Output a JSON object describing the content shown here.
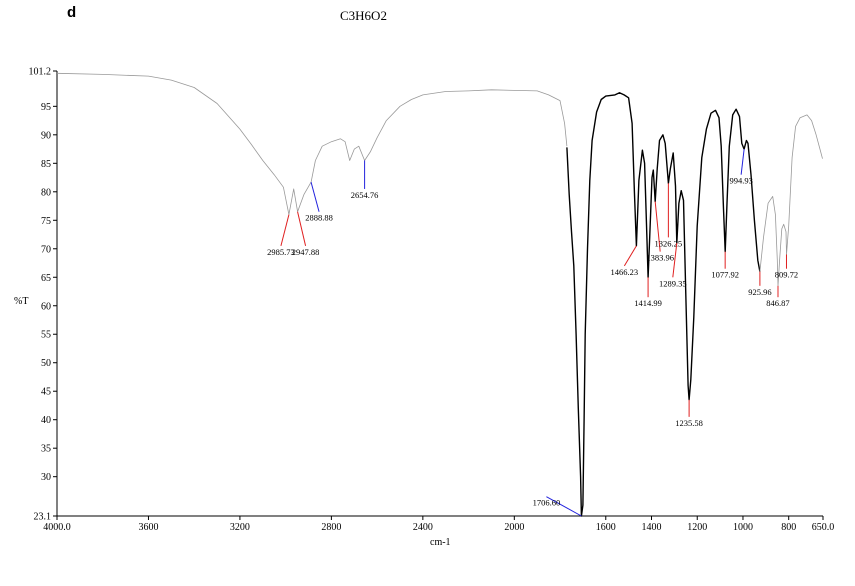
{
  "panel_letter": "d",
  "chart_data": {
    "type": "line",
    "title": "C3H6O2",
    "xlabel": "cm-1",
    "ylabel": "%T",
    "xlim": [
      4000.0,
      650.0
    ],
    "ylim": [
      23.1,
      101.2
    ],
    "x_reversed": true,
    "grid": false,
    "x_ticks": [
      "4000.0",
      "3600",
      "3200",
      "2800",
      "2400",
      "2000",
      "1600",
      "1400",
      "1200",
      "1000",
      "800",
      "650.0"
    ],
    "x_tick_values": [
      4000,
      3600,
      3200,
      2800,
      2400,
      2000,
      1600,
      1400,
      1200,
      1000,
      800,
      650
    ],
    "y_ticks": [
      "101.2",
      "95",
      "90",
      "85",
      "80",
      "75",
      "70",
      "65",
      "60",
      "55",
      "50",
      "45",
      "40",
      "35",
      "30",
      "23.1"
    ],
    "y_tick_values": [
      101.2,
      95,
      90,
      85,
      80,
      75,
      70,
      65,
      60,
      55,
      50,
      45,
      40,
      35,
      30,
      23.1
    ],
    "series": [
      {
        "style": "thin-gray",
        "color": "#999999",
        "points": [
          [
            4000,
            100.8
          ],
          [
            3800,
            100.6
          ],
          [
            3600,
            100.3
          ],
          [
            3500,
            99.6
          ],
          [
            3400,
            98.3
          ],
          [
            3300,
            95.5
          ],
          [
            3200,
            91.0
          ],
          [
            3150,
            88.3
          ],
          [
            3100,
            85.5
          ],
          [
            3050,
            83.0
          ],
          [
            3010,
            80.8
          ],
          [
            2985.73,
            76.0
          ],
          [
            2965,
            80.5
          ],
          [
            2947.88,
            76.5
          ],
          [
            2920,
            79.5
          ],
          [
            2888.88,
            81.7
          ],
          [
            2870,
            85.5
          ],
          [
            2840,
            88.0
          ],
          [
            2800,
            88.8
          ],
          [
            2760,
            89.3
          ],
          [
            2740,
            88.8
          ],
          [
            2720,
            85.5
          ],
          [
            2700,
            87.5
          ],
          [
            2680,
            88.0
          ],
          [
            2654.76,
            85.5
          ],
          [
            2630,
            87.0
          ],
          [
            2600,
            89.5
          ],
          [
            2560,
            92.5
          ],
          [
            2500,
            95.0
          ],
          [
            2450,
            96.2
          ],
          [
            2400,
            97.0
          ],
          [
            2300,
            97.6
          ],
          [
            2200,
            97.7
          ],
          [
            2100,
            97.9
          ],
          [
            2000,
            97.8
          ],
          [
            1900,
            97.7
          ],
          [
            1850,
            97.0
          ],
          [
            1800,
            96.0
          ],
          [
            1780,
            92.0
          ],
          [
            1770,
            88.0
          ]
        ]
      },
      {
        "style": "black",
        "color": "#000000",
        "points": [
          [
            1770,
            87.8
          ],
          [
            1760,
            79.5
          ],
          [
            1750,
            73.0
          ],
          [
            1740,
            67.0
          ],
          [
            1730,
            55.0
          ],
          [
            1720,
            42.0
          ],
          [
            1710,
            30.0
          ],
          [
            1706.6,
            23.1
          ],
          [
            1700,
            25.0
          ],
          [
            1695,
            40.0
          ],
          [
            1690,
            55.0
          ],
          [
            1680,
            70.0
          ],
          [
            1670,
            82.0
          ],
          [
            1660,
            89.0
          ],
          [
            1640,
            94.0
          ],
          [
            1620,
            96.2
          ],
          [
            1600,
            96.8
          ],
          [
            1560,
            97.0
          ],
          [
            1540,
            97.4
          ],
          [
            1520,
            97.0
          ],
          [
            1500,
            96.5
          ],
          [
            1485,
            92.0
          ],
          [
            1475,
            80.0
          ],
          [
            1466.23,
            70.5
          ],
          [
            1455,
            82.0
          ],
          [
            1440,
            87.3
          ],
          [
            1430,
            85.0
          ],
          [
            1420,
            72.0
          ],
          [
            1414.99,
            65.0
          ],
          [
            1408,
            72.0
          ],
          [
            1398,
            82.5
          ],
          [
            1392,
            83.8
          ],
          [
            1383.96,
            78.3
          ],
          [
            1375,
            84.0
          ],
          [
            1365,
            89.0
          ],
          [
            1350,
            90.0
          ],
          [
            1340,
            88.5
          ],
          [
            1326.25,
            81.5
          ],
          [
            1318,
            84.0
          ],
          [
            1305,
            86.8
          ],
          [
            1295,
            81.0
          ],
          [
            1289.35,
            71.0
          ],
          [
            1280,
            78.0
          ],
          [
            1270,
            80.2
          ],
          [
            1260,
            78.5
          ],
          [
            1250,
            62.0
          ],
          [
            1240,
            46.0
          ],
          [
            1235.58,
            43.5
          ],
          [
            1228,
            47.0
          ],
          [
            1215,
            58.0
          ],
          [
            1200,
            74.0
          ],
          [
            1180,
            86.0
          ],
          [
            1160,
            91.0
          ],
          [
            1140,
            93.8
          ],
          [
            1120,
            94.3
          ],
          [
            1105,
            93.0
          ],
          [
            1095,
            88.0
          ],
          [
            1085,
            77.0
          ],
          [
            1077.92,
            69.5
          ],
          [
            1070,
            78.0
          ],
          [
            1060,
            88.0
          ],
          [
            1045,
            93.5
          ],
          [
            1030,
            94.5
          ],
          [
            1015,
            93.2
          ],
          [
            1005,
            88.5
          ],
          [
            994.93,
            87.5
          ],
          [
            985,
            89.0
          ],
          [
            978,
            88.5
          ],
          [
            965,
            83.0
          ],
          [
            950,
            75.0
          ],
          [
            935,
            68.0
          ],
          [
            925.96,
            66.0
          ]
        ]
      },
      {
        "style": "thin-gray",
        "color": "#999999",
        "points": [
          [
            925.96,
            66.0
          ],
          [
            910,
            72.0
          ],
          [
            890,
            78.0
          ],
          [
            870,
            79.2
          ],
          [
            858,
            76.0
          ],
          [
            850,
            68.0
          ],
          [
            846.87,
            63.5
          ],
          [
            840,
            68.0
          ],
          [
            830,
            73.5
          ],
          [
            822,
            74.3
          ],
          [
            812,
            73.0
          ],
          [
            809.72,
            69.0
          ],
          [
            800,
            74.0
          ],
          [
            785,
            86.0
          ],
          [
            770,
            91.5
          ],
          [
            750,
            93.0
          ],
          [
            720,
            93.5
          ],
          [
            700,
            92.5
          ],
          [
            680,
            90.0
          ],
          [
            660,
            87.0
          ],
          [
            652,
            85.8
          ]
        ]
      }
    ],
    "peaks": [
      {
        "label": "2985.73",
        "x": 2985.73,
        "y": 76.0,
        "ly": 70.5,
        "color": "#e02020"
      },
      {
        "label": "2947.88",
        "x": 2947.88,
        "y": 76.5,
        "ly": 70.5,
        "color": "#e02020"
      },
      {
        "label": "2888.88",
        "x": 2888.88,
        "y": 81.7,
        "ly": 76.5,
        "color": "#2222dd"
      },
      {
        "label": "2654.76",
        "x": 2654.76,
        "y": 85.5,
        "ly": 80.5,
        "color": "#2222dd"
      },
      {
        "label": "1706.60",
        "x": 1706.6,
        "y": 23.1,
        "ly": 26.5,
        "color": "#2222dd"
      },
      {
        "label": "1466.23",
        "x": 1466.23,
        "y": 70.5,
        "ly": 67.0,
        "color": "#e02020"
      },
      {
        "label": "1414.99",
        "x": 1414.99,
        "y": 65.0,
        "ly": 61.5,
        "color": "#e02020"
      },
      {
        "label": "1383.96",
        "x": 1383.96,
        "y": 78.3,
        "ly": 69.5,
        "color": "#e02020"
      },
      {
        "label": "1326.25",
        "x": 1326.25,
        "y": 81.5,
        "ly": 72.0,
        "color": "#e02020"
      },
      {
        "label": "1289.35",
        "x": 1289.35,
        "y": 71.0,
        "ly": 65.0,
        "color": "#e02020"
      },
      {
        "label": "1235.58",
        "x": 1235.58,
        "y": 43.5,
        "ly": 40.5,
        "color": "#e02020"
      },
      {
        "label": "1077.92",
        "x": 1077.92,
        "y": 69.5,
        "ly": 66.5,
        "color": "#e02020"
      },
      {
        "label": "994.93",
        "x": 994.93,
        "y": 87.5,
        "ly": 83.0,
        "color": "#2222dd"
      },
      {
        "label": "925.96",
        "x": 925.96,
        "y": 66.0,
        "ly": 63.5,
        "color": "#e02020"
      },
      {
        "label": "846.87",
        "x": 846.87,
        "y": 63.5,
        "ly": 61.5,
        "color": "#e02020"
      },
      {
        "label": "809.72",
        "x": 809.72,
        "y": 69.0,
        "ly": 66.5,
        "color": "#e02020"
      }
    ]
  }
}
